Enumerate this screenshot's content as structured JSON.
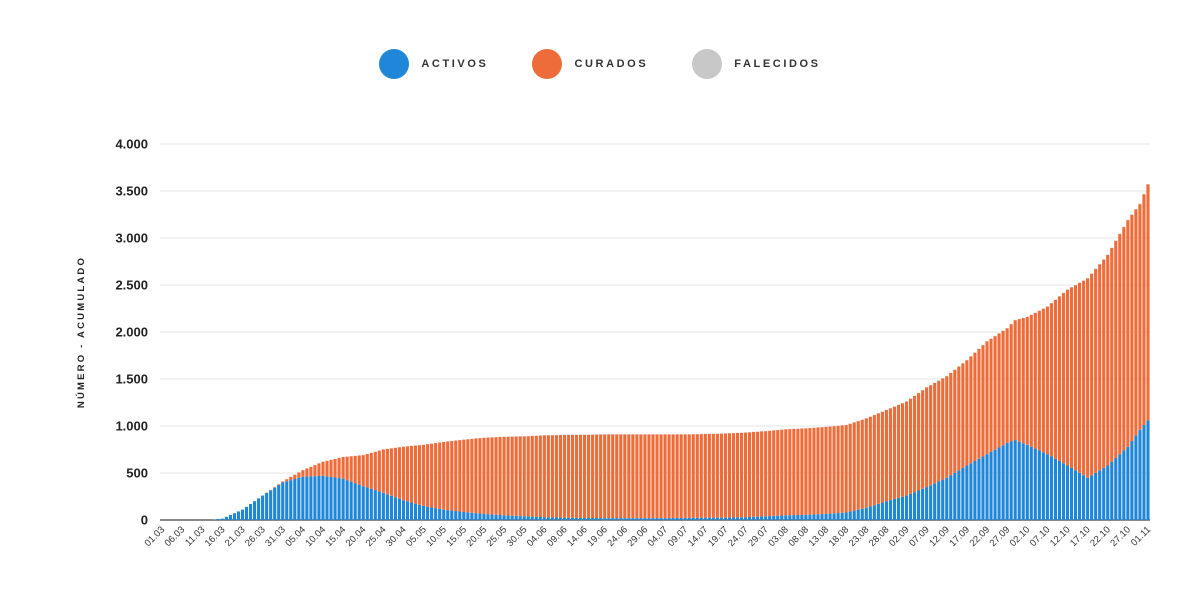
{
  "colors": {
    "activos": "#1f86d8",
    "curados": "#ee6c3a",
    "falecidos": "#c8c8c8",
    "grid": "#e6e6e6"
  },
  "legend": [
    {
      "key": "activos",
      "label": "ACTIVOS",
      "color": "#1f86d8"
    },
    {
      "key": "curados",
      "label": "CURADOS",
      "color": "#ee6c3a"
    },
    {
      "key": "falecidos",
      "label": "FALECIDOS",
      "color": "#c8c8c8"
    }
  ],
  "chart_data": {
    "type": "bar",
    "stacked": true,
    "ylabel": "NÚMERO - ACUMULADO",
    "ylim": [
      0,
      4000
    ],
    "y_ticks": [
      0,
      500,
      1000,
      1500,
      2000,
      2500,
      3000,
      3500,
      4000
    ],
    "y_tick_labels": [
      "0",
      "500",
      "1.000",
      "1.500",
      "2.000",
      "2.500",
      "3.000",
      "3.500",
      "4.000"
    ],
    "x_range": [
      "2020-03-01",
      "2020-11-01"
    ],
    "x_tick_labels": [
      "01.03",
      "06.03",
      "11.03",
      "16.03",
      "21.03",
      "26.03",
      "31.03",
      "05.04",
      "10.04",
      "15.04",
      "20.04",
      "25.04",
      "30.04",
      "05.05",
      "10.05",
      "15.05",
      "20.05",
      "25.05",
      "30.05",
      "04.06",
      "09.06",
      "14.06",
      "19.06",
      "24.06",
      "29.06",
      "04.07",
      "09.07",
      "14.07",
      "19.07",
      "24.07",
      "29.07",
      "03.08",
      "08.08",
      "13.08",
      "18.08",
      "23.08",
      "28.08",
      "02.09",
      "07.09",
      "12.09",
      "17.09",
      "22.09",
      "27.09",
      "02.10",
      "07.10",
      "12.10",
      "17.10",
      "22.10",
      "27.10",
      "01.11"
    ],
    "legend_position": "top-center",
    "grid": "horizontal",
    "series": [
      {
        "name": "ACTIVOS",
        "key": "activos",
        "anchors": [
          [
            "2020-03-01",
            0
          ],
          [
            "2020-03-13",
            0
          ],
          [
            "2020-03-16",
            15
          ],
          [
            "2020-03-21",
            110
          ],
          [
            "2020-03-26",
            260
          ],
          [
            "2020-03-31",
            400
          ],
          [
            "2020-04-05",
            460
          ],
          [
            "2020-04-10",
            470
          ],
          [
            "2020-04-15",
            440
          ],
          [
            "2020-04-20",
            360
          ],
          [
            "2020-04-25",
            290
          ],
          [
            "2020-04-30",
            210
          ],
          [
            "2020-05-05",
            150
          ],
          [
            "2020-05-10",
            110
          ],
          [
            "2020-05-15",
            85
          ],
          [
            "2020-05-20",
            65
          ],
          [
            "2020-05-25",
            50
          ],
          [
            "2020-05-30",
            40
          ],
          [
            "2020-06-04",
            30
          ],
          [
            "2020-06-09",
            25
          ],
          [
            "2020-06-14",
            22
          ],
          [
            "2020-06-19",
            20
          ],
          [
            "2020-06-24",
            20
          ],
          [
            "2020-06-29",
            20
          ],
          [
            "2020-07-04",
            20
          ],
          [
            "2020-07-09",
            22
          ],
          [
            "2020-07-14",
            25
          ],
          [
            "2020-07-19",
            25
          ],
          [
            "2020-07-24",
            30
          ],
          [
            "2020-07-29",
            40
          ],
          [
            "2020-08-03",
            50
          ],
          [
            "2020-08-08",
            55
          ],
          [
            "2020-08-13",
            65
          ],
          [
            "2020-08-18",
            80
          ],
          [
            "2020-08-23",
            130
          ],
          [
            "2020-08-28",
            200
          ],
          [
            "2020-09-02",
            260
          ],
          [
            "2020-09-07",
            350
          ],
          [
            "2020-09-12",
            450
          ],
          [
            "2020-09-17",
            580
          ],
          [
            "2020-09-22",
            700
          ],
          [
            "2020-09-27",
            820
          ],
          [
            "2020-09-29",
            850
          ],
          [
            "2020-10-02",
            800
          ],
          [
            "2020-10-07",
            700
          ],
          [
            "2020-10-12",
            580
          ],
          [
            "2020-10-17",
            450
          ],
          [
            "2020-10-22",
            580
          ],
          [
            "2020-10-27",
            780
          ],
          [
            "2020-10-30",
            960
          ],
          [
            "2020-11-01",
            1060
          ]
        ]
      },
      {
        "name": "CURADOS",
        "key": "curados",
        "anchors": [
          [
            "2020-03-01",
            0
          ],
          [
            "2020-03-26",
            0
          ],
          [
            "2020-03-31",
            10
          ],
          [
            "2020-04-05",
            70
          ],
          [
            "2020-04-10",
            150
          ],
          [
            "2020-04-15",
            230
          ],
          [
            "2020-04-20",
            330
          ],
          [
            "2020-04-25",
            460
          ],
          [
            "2020-04-30",
            570
          ],
          [
            "2020-05-05",
            650
          ],
          [
            "2020-05-10",
            720
          ],
          [
            "2020-05-15",
            770
          ],
          [
            "2020-05-20",
            810
          ],
          [
            "2020-05-25",
            835
          ],
          [
            "2020-05-30",
            850
          ],
          [
            "2020-06-04",
            870
          ],
          [
            "2020-06-09",
            880
          ],
          [
            "2020-06-14",
            885
          ],
          [
            "2020-06-19",
            890
          ],
          [
            "2020-06-24",
            890
          ],
          [
            "2020-06-29",
            890
          ],
          [
            "2020-07-04",
            890
          ],
          [
            "2020-07-09",
            888
          ],
          [
            "2020-07-14",
            890
          ],
          [
            "2020-07-19",
            895
          ],
          [
            "2020-07-24",
            900
          ],
          [
            "2020-07-29",
            905
          ],
          [
            "2020-08-03",
            915
          ],
          [
            "2020-08-08",
            920
          ],
          [
            "2020-08-13",
            925
          ],
          [
            "2020-08-18",
            930
          ],
          [
            "2020-08-23",
            950
          ],
          [
            "2020-08-28",
            970
          ],
          [
            "2020-09-02",
            1000
          ],
          [
            "2020-09-07",
            1060
          ],
          [
            "2020-09-12",
            1080
          ],
          [
            "2020-09-17",
            1120
          ],
          [
            "2020-09-22",
            1200
          ],
          [
            "2020-09-27",
            1220
          ],
          [
            "2020-10-02",
            1360
          ],
          [
            "2020-10-07",
            1570
          ],
          [
            "2020-10-12",
            1870
          ],
          [
            "2020-10-17",
            2120
          ],
          [
            "2020-10-22",
            2240
          ],
          [
            "2020-10-27",
            2410
          ],
          [
            "2020-10-30",
            2400
          ],
          [
            "2020-11-01",
            2510
          ]
        ]
      },
      {
        "name": "FALECIDOS",
        "key": "falecidos",
        "anchors": [
          [
            "2020-03-01",
            0
          ],
          [
            "2020-03-28",
            0
          ],
          [
            "2020-04-01",
            1
          ],
          [
            "2020-04-15",
            2
          ],
          [
            "2020-10-01",
            3
          ],
          [
            "2020-11-01",
            5
          ]
        ]
      }
    ]
  }
}
